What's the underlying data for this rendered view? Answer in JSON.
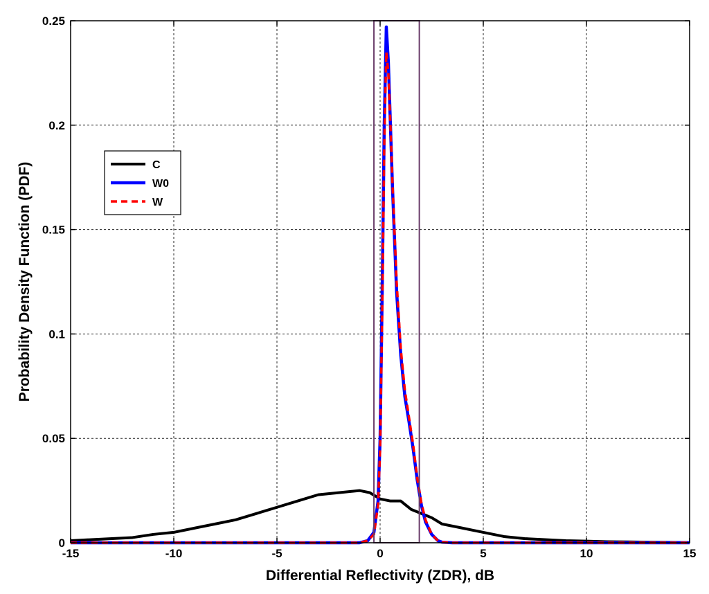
{
  "chart_data": {
    "type": "line",
    "title": "",
    "xlabel": "Differential Reflectivity (ZDR), dB",
    "ylabel": "Probability Density Function (PDF)",
    "xlim": [
      -15,
      15
    ],
    "ylim": [
      0,
      0.25
    ],
    "xticks": [
      -15,
      -10,
      -5,
      0,
      5,
      10,
      15
    ],
    "xtick_labels": [
      "-15",
      "-10",
      "-5",
      "0",
      "5",
      "10",
      "15"
    ],
    "yticks": [
      0,
      0.05,
      0.1,
      0.15,
      0.2,
      0.25
    ],
    "ytick_labels": [
      "0",
      "0.05",
      "0.1",
      "0.15",
      "0.2",
      "0.25"
    ],
    "grid": true,
    "legend_position": "upper-left",
    "highlight_box": {
      "x": [
        -0.3,
        1.9
      ],
      "y": [
        0,
        0.25
      ],
      "color": "#6a3d6a"
    },
    "series": [
      {
        "name": "C",
        "color": "#000000",
        "style": "solid",
        "x": [
          -15,
          -14,
          -13,
          -12,
          -11,
          -10,
          -9,
          -8,
          -7,
          -6,
          -5,
          -4,
          -3,
          -2,
          -1,
          -0.5,
          0,
          0.5,
          1,
          1.5,
          2,
          2.5,
          3,
          3.5,
          4,
          4.5,
          5,
          6,
          7,
          8,
          9,
          10,
          11,
          12,
          13,
          14,
          15
        ],
        "y": [
          0.001,
          0.0015,
          0.002,
          0.0025,
          0.004,
          0.005,
          0.007,
          0.009,
          0.011,
          0.014,
          0.017,
          0.02,
          0.023,
          0.024,
          0.025,
          0.024,
          0.021,
          0.02,
          0.02,
          0.016,
          0.014,
          0.012,
          0.009,
          0.008,
          0.007,
          0.006,
          0.005,
          0.003,
          0.002,
          0.0015,
          0.001,
          0.0008,
          0.0005,
          0.0004,
          0.0003,
          0.0002,
          0.0001
        ]
      },
      {
        "name": "W0",
        "color": "#0000ff",
        "style": "solid",
        "x": [
          -15,
          -1,
          -0.6,
          -0.3,
          -0.1,
          0,
          0.1,
          0.2,
          0.3,
          0.4,
          0.5,
          0.6,
          0.8,
          1.0,
          1.2,
          1.4,
          1.6,
          1.8,
          2.0,
          2.2,
          2.5,
          2.8,
          3.0,
          3.5,
          15
        ],
        "y": [
          0,
          0,
          0.001,
          0.005,
          0.02,
          0.05,
          0.12,
          0.2,
          0.247,
          0.23,
          0.2,
          0.17,
          0.12,
          0.09,
          0.07,
          0.058,
          0.045,
          0.03,
          0.018,
          0.01,
          0.004,
          0.001,
          0.0003,
          0,
          0
        ]
      },
      {
        "name": "W",
        "color": "#ff0000",
        "style": "dashed",
        "x": [
          -15,
          -1,
          -0.6,
          -0.3,
          -0.1,
          0,
          0.1,
          0.2,
          0.3,
          0.4,
          0.5,
          0.6,
          0.8,
          1.0,
          1.2,
          1.4,
          1.6,
          1.8,
          2.0,
          2.2,
          2.5,
          2.8,
          3.0,
          3.5,
          15
        ],
        "y": [
          0,
          0,
          0.001,
          0.004,
          0.018,
          0.045,
          0.11,
          0.19,
          0.235,
          0.225,
          0.2,
          0.172,
          0.125,
          0.093,
          0.073,
          0.06,
          0.047,
          0.031,
          0.019,
          0.011,
          0.004,
          0.001,
          0.0003,
          0,
          0
        ]
      }
    ]
  }
}
